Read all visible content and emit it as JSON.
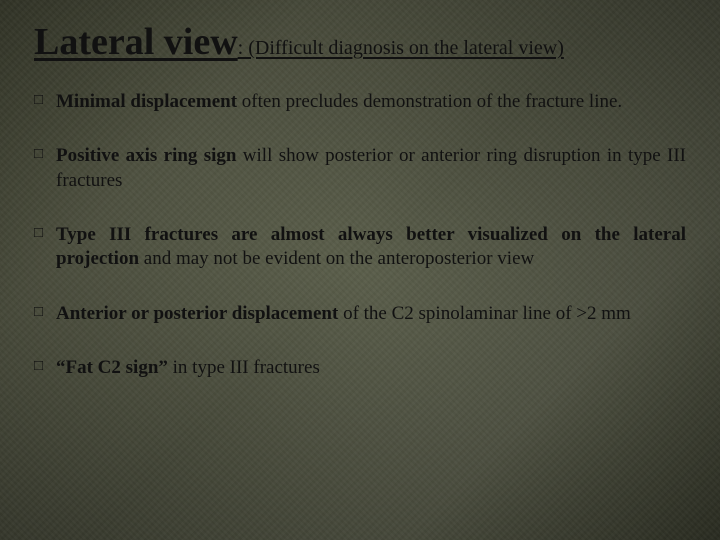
{
  "slide": {
    "background_colors": [
      "#4a4d3a",
      "#575a47",
      "#4e5140",
      "#565948",
      "#3f4232"
    ],
    "text_color": "#111111",
    "font_family": "Georgia, Times New Roman, serif",
    "title": {
      "main": "Lateral view",
      "main_fontsize": 38,
      "sub": ": (Difficult diagnosis on the lateral view)",
      "sub_fontsize": 20,
      "underline": true
    },
    "bullet_marker": "□",
    "bullet_fontsize": 19,
    "bullets": [
      {
        "bold_lead": "Minimal displacement",
        "rest": " often precludes demonstration of the fracture line."
      },
      {
        "bold_lead": "Positive axis ring sign",
        "rest": " will show posterior or anterior ring disruption in type III fractures"
      },
      {
        "bold_lead": "Type III fractures are almost always better visualized on the lateral projection",
        "rest": " and may not be evident on the anteroposterior view"
      },
      {
        "bold_lead": "Anterior or posterior displacement",
        "rest": " of the C2 spinolaminar line of >2 mm"
      },
      {
        "bold_lead": "“Fat C2 sign”",
        "rest": " in type III fractures"
      }
    ]
  }
}
